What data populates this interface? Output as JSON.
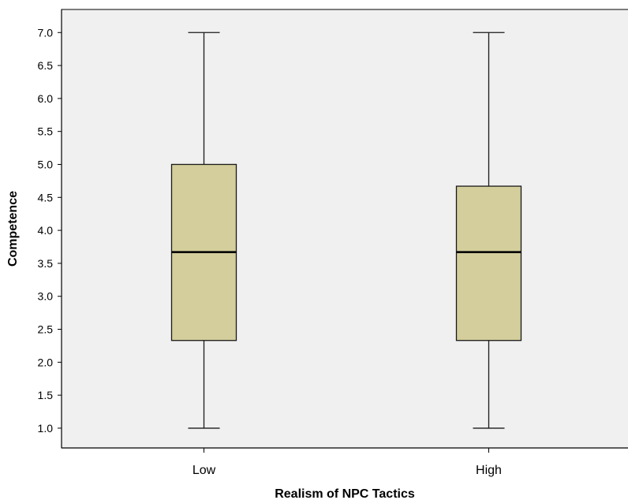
{
  "chart_data": {
    "type": "boxplot",
    "title": "",
    "xlabel": "Realism of NPC Tactics",
    "ylabel": "Competence",
    "categories": [
      "Low",
      "High"
    ],
    "ylim": [
      0.7,
      7.35
    ],
    "yticks": [
      "1.0",
      "1.5",
      "2.0",
      "2.5",
      "3.0",
      "3.5",
      "4.0",
      "4.5",
      "5.0",
      "5.5",
      "6.0",
      "6.5",
      "7.0"
    ],
    "grid": false,
    "legend": "none",
    "series": [
      {
        "category": "Low",
        "min": 1.0,
        "q1": 2.33,
        "median": 3.67,
        "q3": 5.0,
        "max": 7.0
      },
      {
        "category": "High",
        "min": 1.0,
        "q1": 2.33,
        "median": 3.67,
        "q3": 4.67,
        "max": 7.0
      }
    ],
    "colors": {
      "plot_background": "#f0f0f0",
      "box_fill": "#d3ce9b",
      "box_stroke": "#1a1a1a",
      "median_line": "#000000",
      "axis_line": "#000000"
    }
  }
}
